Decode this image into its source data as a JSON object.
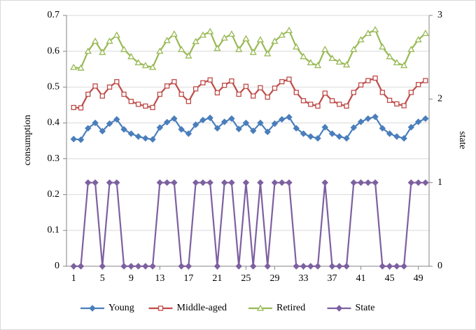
{
  "chart_data": {
    "type": "line",
    "x": [
      1,
      2,
      3,
      4,
      5,
      6,
      7,
      8,
      9,
      10,
      11,
      12,
      13,
      14,
      15,
      16,
      17,
      18,
      19,
      20,
      21,
      22,
      23,
      24,
      25,
      26,
      27,
      28,
      29,
      30,
      31,
      32,
      33,
      34,
      35,
      36,
      37,
      38,
      39,
      40,
      41,
      42,
      43,
      44,
      45,
      46,
      47,
      48,
      49,
      50
    ],
    "xlim": [
      0,
      50.5
    ],
    "xticks": [
      1,
      5,
      9,
      13,
      17,
      21,
      25,
      29,
      33,
      37,
      41,
      45,
      49
    ],
    "ylim": [
      0,
      0.7
    ],
    "yticks": [
      0,
      0.1,
      0.2,
      0.3,
      0.4,
      0.5,
      0.6,
      0.7
    ],
    "y2lim": [
      0,
      3
    ],
    "y2ticks": [
      0,
      1,
      2,
      3
    ],
    "ylabel": "consumption",
    "y2label": "state",
    "grid": true,
    "legend": "bottom",
    "series": [
      {
        "name": "Young",
        "color": "#4a7ebb",
        "marker": "diamond",
        "values": [
          0.355,
          0.353,
          0.385,
          0.4,
          0.377,
          0.398,
          0.41,
          0.382,
          0.37,
          0.362,
          0.357,
          0.354,
          0.387,
          0.402,
          0.412,
          0.382,
          0.37,
          0.395,
          0.408,
          0.414,
          0.385,
          0.403,
          0.412,
          0.383,
          0.4,
          0.378,
          0.4,
          0.375,
          0.398,
          0.41,
          0.416,
          0.385,
          0.37,
          0.362,
          0.357,
          0.388,
          0.37,
          0.362,
          0.357,
          0.387,
          0.403,
          0.412,
          0.417,
          0.385,
          0.37,
          0.362,
          0.357,
          0.388,
          0.403,
          0.412
        ]
      },
      {
        "name": "Middle-aged",
        "color": "#be4b48",
        "marker": "square",
        "values": [
          0.443,
          0.442,
          0.48,
          0.503,
          0.475,
          0.5,
          0.515,
          0.48,
          0.46,
          0.452,
          0.447,
          0.443,
          0.48,
          0.503,
          0.515,
          0.48,
          0.46,
          0.495,
          0.512,
          0.52,
          0.484,
          0.505,
          0.517,
          0.48,
          0.502,
          0.475,
          0.498,
          0.472,
          0.497,
          0.515,
          0.522,
          0.485,
          0.462,
          0.452,
          0.447,
          0.483,
          0.462,
          0.452,
          0.447,
          0.485,
          0.506,
          0.518,
          0.525,
          0.485,
          0.463,
          0.453,
          0.448,
          0.485,
          0.507,
          0.518
        ]
      },
      {
        "name": "Retired",
        "color": "#98b954",
        "marker": "triangle",
        "values": [
          0.555,
          0.553,
          0.6,
          0.628,
          0.597,
          0.628,
          0.645,
          0.605,
          0.585,
          0.568,
          0.56,
          0.555,
          0.6,
          0.63,
          0.648,
          0.605,
          0.587,
          0.627,
          0.645,
          0.655,
          0.608,
          0.637,
          0.648,
          0.605,
          0.635,
          0.597,
          0.632,
          0.593,
          0.628,
          0.645,
          0.658,
          0.612,
          0.585,
          0.568,
          0.56,
          0.605,
          0.58,
          0.57,
          0.562,
          0.605,
          0.632,
          0.65,
          0.66,
          0.612,
          0.585,
          0.568,
          0.56,
          0.605,
          0.632,
          0.65
        ]
      },
      {
        "name": "State",
        "color": "#7d60a0",
        "marker": "diamond",
        "axis": "y2",
        "values": [
          0,
          0,
          1,
          1,
          0,
          1,
          1,
          0,
          0,
          0,
          0,
          0,
          1,
          1,
          1,
          0,
          0,
          1,
          1,
          1,
          0,
          1,
          1,
          0,
          1,
          0,
          1,
          0,
          1,
          1,
          1,
          0,
          0,
          0,
          0,
          1,
          0,
          0,
          0,
          1,
          1,
          1,
          1,
          0,
          0,
          0,
          0,
          1,
          1,
          1
        ]
      }
    ]
  }
}
